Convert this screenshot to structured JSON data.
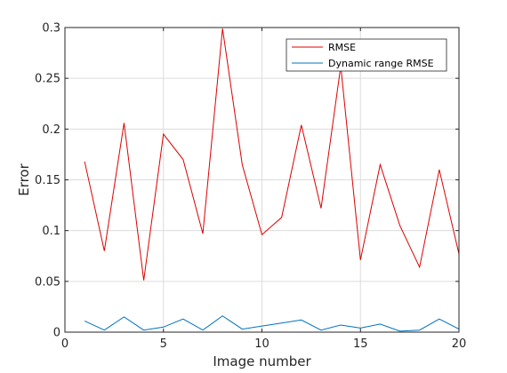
{
  "chart_data": {
    "type": "line",
    "title": "",
    "xlabel": "Image number",
    "ylabel": "Error",
    "xlim": [
      0,
      20
    ],
    "ylim": [
      0,
      0.3
    ],
    "xticks": [
      0,
      5,
      10,
      15,
      20
    ],
    "yticks": [
      0,
      0.05,
      0.1,
      0.15,
      0.2,
      0.25,
      0.3
    ],
    "xtick_labels": [
      "0",
      "5",
      "10",
      "15",
      "20"
    ],
    "ytick_labels": [
      "0",
      "0.05",
      "0.1",
      "0.15",
      "0.2",
      "0.25",
      "0.3"
    ],
    "grid": true,
    "legend_position": "top-right",
    "x": [
      1,
      2,
      3,
      4,
      5,
      6,
      7,
      8,
      9,
      10,
      11,
      12,
      13,
      14,
      15,
      16,
      17,
      18,
      19,
      20
    ],
    "series": [
      {
        "name": "RMSE",
        "color": "#dd0000",
        "values": [
          0.168,
          0.08,
          0.206,
          0.051,
          0.195,
          0.17,
          0.097,
          0.299,
          0.165,
          0.096,
          0.113,
          0.204,
          0.122,
          0.262,
          0.071,
          0.165,
          0.105,
          0.064,
          0.16,
          0.077
        ]
      },
      {
        "name": "Dynamic range RMSE",
        "color": "#0072bd",
        "values": [
          0.011,
          0.002,
          0.015,
          0.002,
          0.005,
          0.013,
          0.002,
          0.016,
          0.003,
          0.006,
          0.009,
          0.012,
          0.002,
          0.007,
          0.004,
          0.008,
          0.001,
          0.002,
          0.013,
          0.003
        ]
      }
    ]
  }
}
